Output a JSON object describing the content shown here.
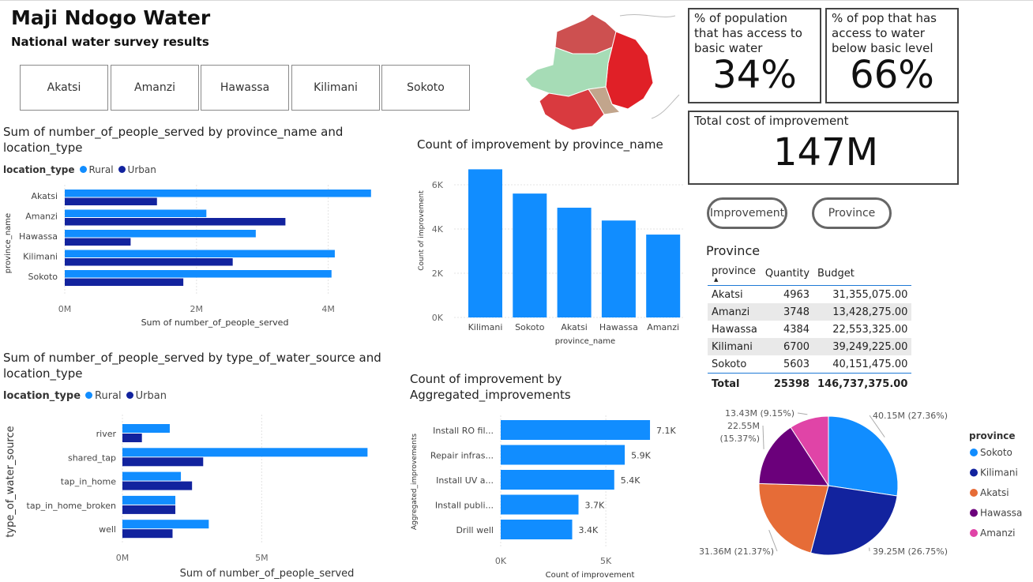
{
  "header": {
    "title": "Maji Ndogo Water",
    "subtitle": "National water survey results"
  },
  "slicer": {
    "provinces": [
      "Akatsi",
      "Amanzi",
      "Hawassa",
      "Kilimani",
      "Sokoto"
    ]
  },
  "colors": {
    "rural": "#118dff",
    "urban": "#12239e",
    "bar": "#118dff",
    "pie": [
      "#118dff",
      "#12239e",
      "#e66c37",
      "#6b007b",
      "#e044a7"
    ]
  },
  "cards": {
    "basic_access": {
      "label": "% of population that has access to basic water",
      "value": "34%"
    },
    "below_basic": {
      "label": "% of pop that has access to water below basic level",
      "value": "66%"
    },
    "total_cost": {
      "label": "Total cost of improvement",
      "value": "147M"
    }
  },
  "buttons": {
    "improvement": "Improvement",
    "province": "Province"
  },
  "table": {
    "title": "Province",
    "headers": [
      "province",
      "Quantity",
      "Budget"
    ],
    "rows": [
      {
        "province": "Akatsi",
        "quantity": "4963",
        "budget": "31,355,075.00"
      },
      {
        "province": "Amanzi",
        "quantity": "3748",
        "budget": "13,428,275.00"
      },
      {
        "province": "Hawassa",
        "quantity": "4384",
        "budget": "22,553,325.00"
      },
      {
        "province": "Kilimani",
        "quantity": "6700",
        "budget": "39,249,225.00"
      },
      {
        "province": "Sokoto",
        "quantity": "5603",
        "budget": "40,151,475.00"
      }
    ],
    "total": {
      "label": "Total",
      "quantity": "25398",
      "budget": "146,737,375.00"
    }
  },
  "chart_data": [
    {
      "id": "people_by_province",
      "type": "bar",
      "orientation": "horizontal",
      "title": "Sum of number_of_people_served by province_name and location_type",
      "legend_title": "location_type",
      "legend_position": "top-left",
      "xlabel": "Sum of number_of_people_served",
      "ylabel": "province_name",
      "categories": [
        "Akatsi",
        "Amanzi",
        "Hawassa",
        "Kilimani",
        "Sokoto"
      ],
      "series": [
        {
          "name": "Rural",
          "values": [
            4.65,
            2.15,
            2.9,
            4.1,
            4.05
          ]
        },
        {
          "name": "Urban",
          "values": [
            1.4,
            3.35,
            1.0,
            2.55,
            1.8
          ]
        }
      ],
      "unit": "M",
      "xticks": [
        "0M",
        "2M",
        "4M"
      ],
      "xlim": [
        0,
        5
      ],
      "grid": true
    },
    {
      "id": "improvement_by_province",
      "type": "bar",
      "orientation": "vertical",
      "title": "Count of improvement by province_name",
      "xlabel": "province_name",
      "ylabel": "Count of improvement",
      "categories": [
        "Kilimani",
        "Sokoto",
        "Akatsi",
        "Hawassa",
        "Amanzi"
      ],
      "values": [
        6700,
        5603,
        4963,
        4384,
        3748
      ],
      "yticks": [
        "0K",
        "2K",
        "4K",
        "6K"
      ],
      "ylim": [
        0,
        7000
      ],
      "grid": true
    },
    {
      "id": "people_by_source",
      "type": "bar",
      "orientation": "horizontal",
      "title": "Sum of number_of_people_served by type_of_water_source and location_type",
      "legend_title": "location_type",
      "legend_position": "top-left",
      "xlabel": "Sum of number_of_people_served",
      "ylabel": "type_of_water_source",
      "categories": [
        "river",
        "shared_tap",
        "tap_in_home",
        "tap_in_home_broken",
        "well"
      ],
      "series": [
        {
          "name": "Rural",
          "values": [
            1.7,
            8.8,
            2.1,
            1.9,
            3.1
          ]
        },
        {
          "name": "Urban",
          "values": [
            0.7,
            2.9,
            2.5,
            1.9,
            1.8
          ]
        }
      ],
      "unit": "M",
      "xticks": [
        "0M",
        "5M"
      ],
      "xlim": [
        0,
        9.3
      ],
      "grid": true
    },
    {
      "id": "improvement_by_aggregated",
      "type": "bar",
      "orientation": "horizontal",
      "title": "Count of improvement by Aggregated_improvements",
      "xlabel": "Count of improvement",
      "ylabel": "Aggregated_improvements",
      "categories": [
        "Install RO fil...",
        "Repair infras...",
        "Install UV a...",
        "Install publi...",
        "Drill well"
      ],
      "values": [
        7.1,
        5.9,
        5.4,
        3.7,
        3.4
      ],
      "data_labels": [
        "7.1K",
        "5.9K",
        "5.4K",
        "3.7K",
        "3.4K"
      ],
      "unit": "K",
      "xticks": [
        "0K",
        "5K"
      ],
      "xlim": [
        0,
        8
      ],
      "grid": true
    },
    {
      "id": "budget_by_province_pie",
      "type": "pie",
      "legend_title": "province",
      "legend_position": "right",
      "labels": [
        "Sokoto",
        "Kilimani",
        "Akatsi",
        "Hawassa",
        "Amanzi"
      ],
      "values": [
        40.15,
        39.25,
        31.36,
        22.55,
        13.43
      ],
      "data_labels": [
        "40.15M (27.36%)",
        "39.25M (26.75%)",
        "31.36M (21.37%)",
        "22.55M (15.37%)",
        "13.43M (9.15%)"
      ]
    }
  ]
}
